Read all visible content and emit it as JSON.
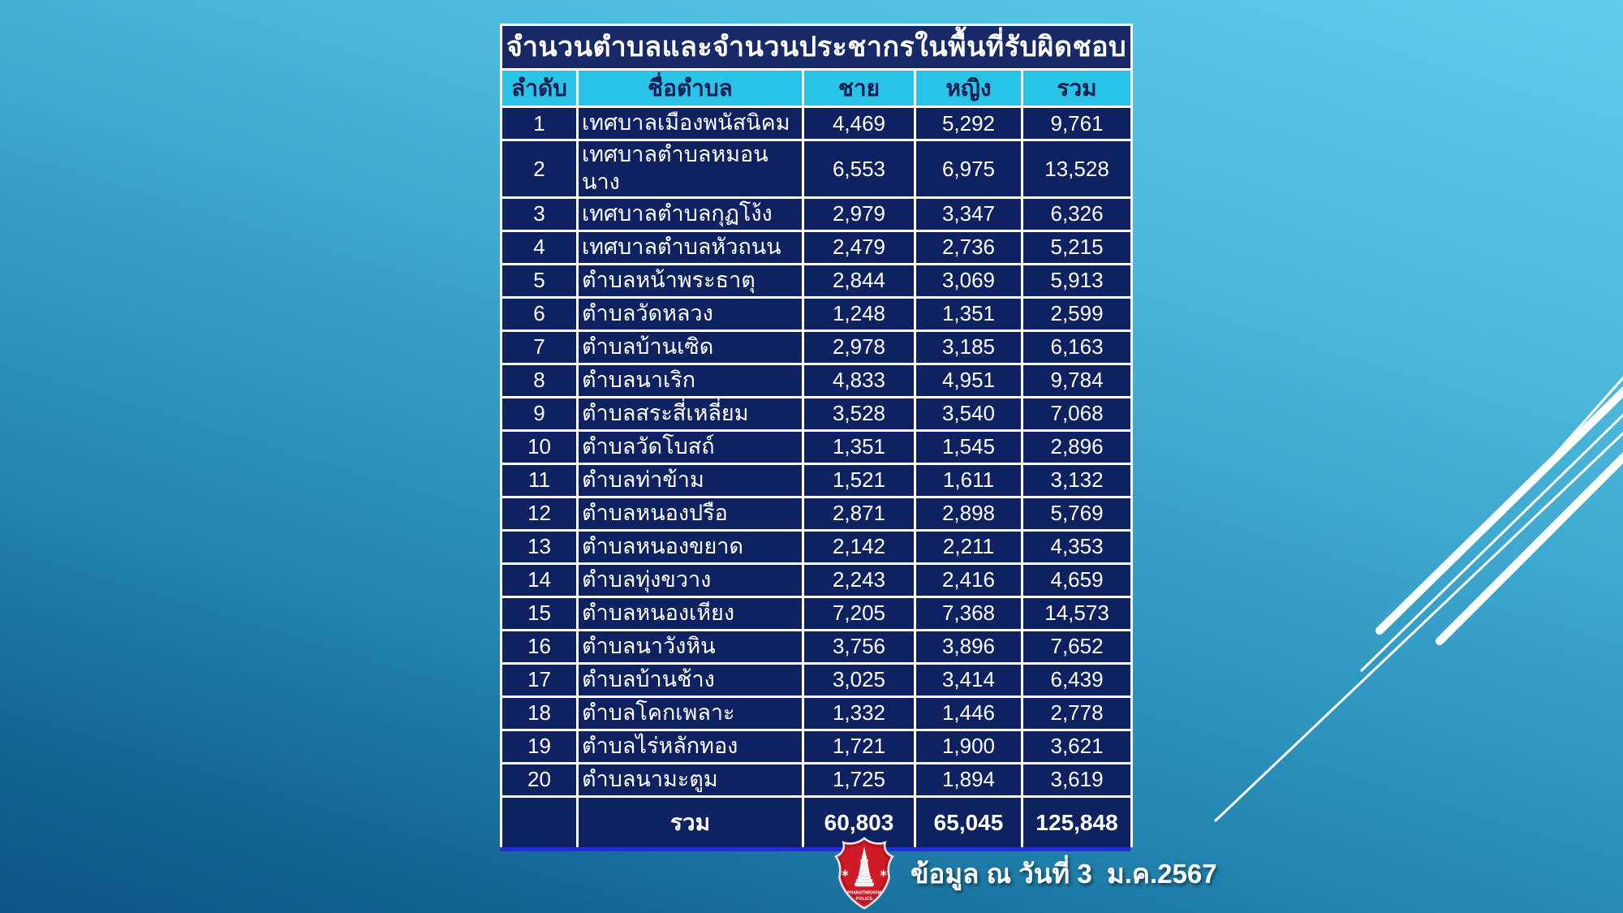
{
  "title": "จำนวนตำบลและจำนวนประชากรในพื้นที่รับผิดชอบ",
  "table": {
    "headers": [
      "ลำดับ",
      "ชื่อตำบล",
      "ชาย",
      "หญิง",
      "รวม"
    ],
    "rows": [
      [
        "1",
        "เทศบาลเมืองพนัสนิคม",
        "4,469",
        "5,292",
        "9,761"
      ],
      [
        "2",
        "เทศบาลตำบลหมอนนาง",
        "6,553",
        "6,975",
        "13,528"
      ],
      [
        "3",
        "เทศบาลตำบลกุฏโง้ง",
        "2,979",
        "3,347",
        "6,326"
      ],
      [
        "4",
        "เทศบาลตำบลหัวถนน",
        "2,479",
        "2,736",
        "5,215"
      ],
      [
        "5",
        "ตำบลหน้าพระธาตุ",
        "2,844",
        "3,069",
        "5,913"
      ],
      [
        "6",
        "ตำบลวัดหลวง",
        "1,248",
        "1,351",
        "2,599"
      ],
      [
        "7",
        "ตำบลบ้านเซิด",
        "2,978",
        "3,185",
        "6,163"
      ],
      [
        "8",
        "ตำบลนาเริก",
        "4,833",
        "4,951",
        "9,784"
      ],
      [
        "9",
        "ตำบลสระสี่เหลี่ยม",
        "3,528",
        "3,540",
        "7,068"
      ],
      [
        "10",
        "ตำบลวัดโบสถ์",
        "1,351",
        "1,545",
        "2,896"
      ],
      [
        "11",
        "ตำบลท่าข้าม",
        "1,521",
        "1,611",
        "3,132"
      ],
      [
        "12",
        "ตำบลหนองปรือ",
        "2,871",
        "2,898",
        "5,769"
      ],
      [
        "13",
        "ตำบลหนองขยาด",
        "2,142",
        "2,211",
        "4,353"
      ],
      [
        "14",
        "ตำบลทุ่งขวาง",
        "2,243",
        "2,416",
        "4,659"
      ],
      [
        "15",
        "ตำบลหนองเหียง",
        "7,205",
        "7,368",
        "14,573"
      ],
      [
        "16",
        "ตำบลนาวังหิน",
        "3,756",
        "3,896",
        "7,652"
      ],
      [
        "17",
        "ตำบลบ้านช้าง",
        "3,025",
        "3,414",
        "6,439"
      ],
      [
        "18",
        "ตำบลโคกเพลาะ",
        "1,332",
        "1,446",
        "2,778"
      ],
      [
        "19",
        "ตำบลไร่หลักทอง",
        "1,721",
        "1,900",
        "3,621"
      ],
      [
        "20",
        "ตำบลนามะตูม",
        "1,725",
        "1,894",
        "3,619"
      ]
    ],
    "total_row": {
      "label": "รวม",
      "male": "60,803",
      "female": "65,045",
      "total": "125,848"
    }
  },
  "footer": {
    "caption": "ข้อมูล ณ วันที่ 3  ม.ค.2567",
    "badge_line1": "PHANATNIKHOM",
    "badge_line2": "POLICE"
  },
  "colors": {
    "background_top": "#5fcdec",
    "background_bottom": "#0c5486",
    "title_navy": "#172a67",
    "row_navy": "#0e2161",
    "header_cyan": "#29c3e8",
    "header_text_navy": "#0c1e52",
    "table_bottom_blue": "#2130ce",
    "badge_red": "#cf1b28",
    "streak_white": "#ffffff"
  }
}
